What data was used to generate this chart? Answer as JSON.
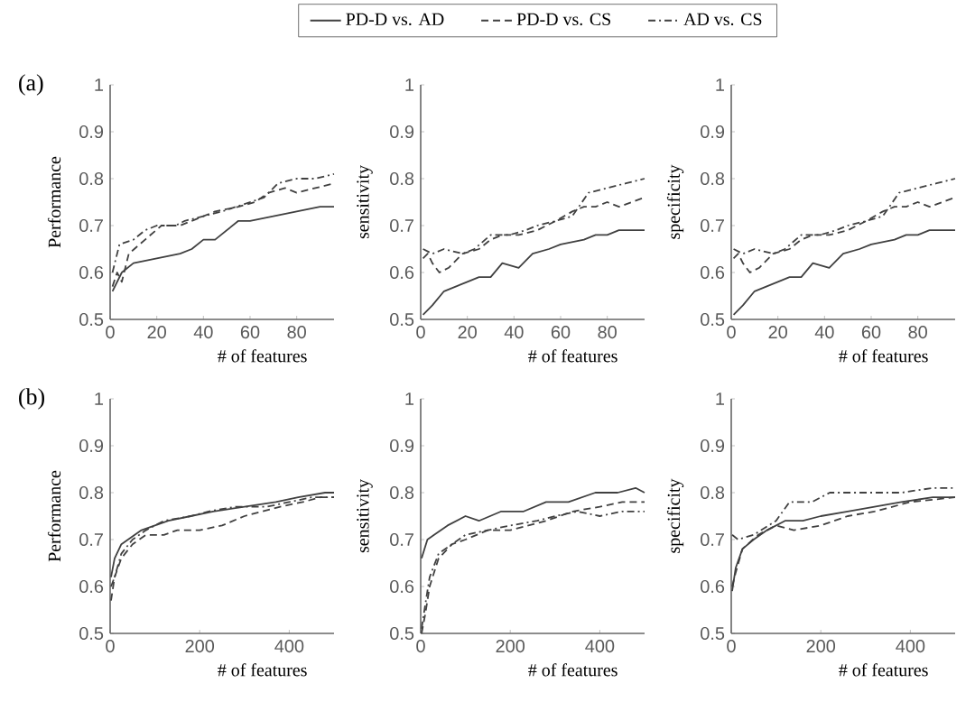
{
  "chart_data": [
    {
      "type": "line",
      "ylabel": "Performance",
      "xlabel": "# of features",
      "xlim": [
        0,
        96
      ],
      "ylim": [
        0.5,
        1
      ],
      "xticks": [
        0,
        20,
        40,
        60,
        80
      ],
      "yticks": [
        0.5,
        0.6,
        0.7,
        0.8,
        0.9,
        1
      ],
      "legend": "top",
      "annotations": [
        "(a)"
      ],
      "series": [
        {
          "name": "PD-D vs. AD",
          "color": "#404040",
          "line_style": "solid",
          "x": [
            1,
            5,
            10,
            20,
            30,
            35,
            40,
            45,
            50,
            55,
            60,
            70,
            80,
            90,
            96
          ],
          "values": [
            0.56,
            0.6,
            0.62,
            0.63,
            0.64,
            0.65,
            0.67,
            0.67,
            0.69,
            0.71,
            0.71,
            0.72,
            0.73,
            0.74,
            0.74
          ]
        },
        {
          "name": "PD-D vs. CS",
          "color": "#404040",
          "line_style": "dashed",
          "x": [
            1,
            3,
            5,
            8,
            15,
            22,
            30,
            35,
            40,
            45,
            55,
            62,
            68,
            75,
            80,
            88,
            96
          ],
          "values": [
            0.57,
            0.6,
            0.58,
            0.64,
            0.67,
            0.7,
            0.7,
            0.71,
            0.72,
            0.73,
            0.74,
            0.75,
            0.77,
            0.78,
            0.77,
            0.78,
            0.79
          ]
        },
        {
          "name": "AD vs. CS",
          "color": "#404040",
          "line_style": "dashdot",
          "x": [
            1,
            4,
            10,
            15,
            20,
            28,
            32,
            40,
            48,
            60,
            66,
            72,
            80,
            88,
            96
          ],
          "values": [
            0.6,
            0.66,
            0.67,
            0.69,
            0.7,
            0.7,
            0.71,
            0.72,
            0.73,
            0.75,
            0.76,
            0.79,
            0.8,
            0.8,
            0.81
          ]
        }
      ]
    },
    {
      "type": "line",
      "ylabel": "sensitivity",
      "xlabel": "# of features",
      "xlim": [
        0,
        96
      ],
      "ylim": [
        0.5,
        1
      ],
      "xticks": [
        0,
        20,
        40,
        60,
        80
      ],
      "yticks": [
        0.5,
        0.6,
        0.7,
        0.8,
        0.9,
        1
      ],
      "series": [
        {
          "color": "#404040",
          "line_style": "solid",
          "x": [
            1,
            5,
            10,
            15,
            20,
            25,
            30,
            35,
            42,
            48,
            55,
            60,
            70,
            75,
            80,
            85,
            90,
            96
          ],
          "values": [
            0.51,
            0.53,
            0.56,
            0.57,
            0.58,
            0.59,
            0.59,
            0.62,
            0.61,
            0.64,
            0.65,
            0.66,
            0.67,
            0.68,
            0.68,
            0.69,
            0.69,
            0.69
          ]
        },
        {
          "color": "#404040",
          "line_style": "dashed",
          "x": [
            1,
            3,
            5,
            8,
            12,
            18,
            25,
            30,
            35,
            42,
            50,
            58,
            65,
            70,
            75,
            80,
            85,
            96
          ],
          "values": [
            0.63,
            0.64,
            0.62,
            0.6,
            0.61,
            0.64,
            0.65,
            0.67,
            0.68,
            0.68,
            0.69,
            0.71,
            0.73,
            0.74,
            0.74,
            0.75,
            0.74,
            0.76
          ]
        },
        {
          "color": "#404040",
          "line_style": "dashdot",
          "x": [
            1,
            5,
            10,
            18,
            23,
            30,
            38,
            45,
            50,
            58,
            65,
            72,
            80,
            88,
            96
          ],
          "values": [
            0.65,
            0.64,
            0.65,
            0.64,
            0.65,
            0.68,
            0.68,
            0.69,
            0.7,
            0.71,
            0.72,
            0.77,
            0.78,
            0.79,
            0.8
          ]
        }
      ]
    },
    {
      "type": "line",
      "ylabel": "specificity",
      "xlabel": "# of features",
      "xlim": [
        0,
        96
      ],
      "ylim": [
        0.5,
        1
      ],
      "xticks": [
        0,
        20,
        40,
        60,
        80
      ],
      "yticks": [
        0.5,
        0.6,
        0.7,
        0.8,
        0.9,
        1
      ],
      "series": [
        {
          "color": "#404040",
          "line_style": "solid",
          "x": [
            1,
            5,
            10,
            15,
            20,
            25,
            30,
            35,
            42,
            48,
            55,
            60,
            70,
            75,
            80,
            85,
            90,
            96
          ],
          "values": [
            0.51,
            0.53,
            0.56,
            0.57,
            0.58,
            0.59,
            0.59,
            0.62,
            0.61,
            0.64,
            0.65,
            0.66,
            0.67,
            0.68,
            0.68,
            0.69,
            0.69,
            0.69
          ]
        },
        {
          "color": "#404040",
          "line_style": "dashed",
          "x": [
            1,
            3,
            5,
            8,
            12,
            18,
            25,
            30,
            35,
            42,
            50,
            58,
            65,
            70,
            75,
            80,
            85,
            96
          ],
          "values": [
            0.63,
            0.64,
            0.62,
            0.6,
            0.61,
            0.64,
            0.65,
            0.67,
            0.68,
            0.68,
            0.69,
            0.71,
            0.73,
            0.74,
            0.74,
            0.75,
            0.74,
            0.76
          ]
        },
        {
          "color": "#404040",
          "line_style": "dashdot",
          "x": [
            1,
            5,
            10,
            18,
            23,
            30,
            38,
            45,
            50,
            58,
            65,
            72,
            80,
            88,
            96
          ],
          "values": [
            0.65,
            0.64,
            0.65,
            0.64,
            0.65,
            0.68,
            0.68,
            0.69,
            0.7,
            0.71,
            0.72,
            0.77,
            0.78,
            0.79,
            0.8
          ]
        }
      ]
    },
    {
      "type": "line",
      "ylabel": "Performance",
      "xlabel": "# of features",
      "xlim": [
        0,
        500
      ],
      "ylim": [
        0.5,
        1
      ],
      "xticks": [
        0,
        200,
        400
      ],
      "yticks": [
        0.5,
        0.6,
        0.7,
        0.8,
        0.9,
        1
      ],
      "annotations": [
        "(b)"
      ],
      "series": [
        {
          "color": "#404040",
          "line_style": "solid",
          "x": [
            2,
            10,
            25,
            40,
            70,
            100,
            130,
            180,
            230,
            300,
            370,
            420,
            480,
            500
          ],
          "values": [
            0.62,
            0.66,
            0.69,
            0.7,
            0.72,
            0.73,
            0.74,
            0.75,
            0.76,
            0.77,
            0.78,
            0.79,
            0.8,
            0.8
          ]
        },
        {
          "color": "#404040",
          "line_style": "dashed",
          "x": [
            2,
            10,
            25,
            50,
            80,
            120,
            150,
            200,
            250,
            300,
            380,
            430,
            470,
            500
          ],
          "values": [
            0.57,
            0.62,
            0.66,
            0.69,
            0.71,
            0.71,
            0.72,
            0.72,
            0.73,
            0.75,
            0.77,
            0.78,
            0.79,
            0.79
          ]
        },
        {
          "color": "#404040",
          "line_style": "dashdot",
          "x": [
            2,
            10,
            25,
            50,
            80,
            120,
            180,
            220,
            280,
            350,
            400,
            450,
            500
          ],
          "values": [
            0.6,
            0.62,
            0.67,
            0.7,
            0.72,
            0.74,
            0.75,
            0.76,
            0.77,
            0.77,
            0.78,
            0.79,
            0.79
          ]
        }
      ]
    },
    {
      "type": "line",
      "ylabel": "sensitivity",
      "xlabel": "# of features",
      "xlim": [
        0,
        500
      ],
      "ylim": [
        0.5,
        1
      ],
      "xticks": [
        0,
        200,
        400
      ],
      "yticks": [
        0.5,
        0.6,
        0.7,
        0.8,
        0.9,
        1
      ],
      "series": [
        {
          "color": "#404040",
          "line_style": "solid",
          "x": [
            2,
            15,
            30,
            60,
            100,
            130,
            180,
            230,
            280,
            330,
            390,
            440,
            480,
            500
          ],
          "values": [
            0.66,
            0.7,
            0.71,
            0.73,
            0.75,
            0.74,
            0.76,
            0.76,
            0.78,
            0.78,
            0.8,
            0.8,
            0.81,
            0.8
          ]
        },
        {
          "color": "#404040",
          "line_style": "dashed",
          "x": [
            2,
            10,
            20,
            40,
            70,
            100,
            150,
            200,
            280,
            340,
            400,
            450,
            500
          ],
          "values": [
            0.5,
            0.54,
            0.6,
            0.66,
            0.69,
            0.7,
            0.72,
            0.72,
            0.74,
            0.76,
            0.77,
            0.78,
            0.78
          ]
        },
        {
          "color": "#404040",
          "line_style": "dashdot",
          "x": [
            2,
            10,
            20,
            40,
            70,
            100,
            150,
            200,
            260,
            300,
            350,
            400,
            450,
            500
          ],
          "values": [
            0.51,
            0.56,
            0.62,
            0.67,
            0.69,
            0.71,
            0.72,
            0.73,
            0.74,
            0.75,
            0.76,
            0.75,
            0.76,
            0.76
          ]
        }
      ]
    },
    {
      "type": "line",
      "ylabel": "specificity",
      "xlabel": "# of features",
      "xlim": [
        0,
        500
      ],
      "ylim": [
        0.5,
        1
      ],
      "xticks": [
        0,
        200,
        400
      ],
      "yticks": [
        0.5,
        0.6,
        0.7,
        0.8,
        0.9,
        1
      ],
      "series": [
        {
          "color": "#404040",
          "line_style": "solid",
          "x": [
            2,
            10,
            25,
            50,
            80,
            120,
            160,
            200,
            260,
            320,
            380,
            450,
            500
          ],
          "values": [
            0.59,
            0.64,
            0.68,
            0.7,
            0.72,
            0.74,
            0.74,
            0.75,
            0.76,
            0.77,
            0.78,
            0.79,
            0.79
          ]
        },
        {
          "color": "#404040",
          "line_style": "dashed",
          "x": [
            2,
            10,
            25,
            60,
            100,
            140,
            200,
            260,
            320,
            400,
            500
          ],
          "values": [
            0.6,
            0.63,
            0.68,
            0.71,
            0.73,
            0.72,
            0.73,
            0.75,
            0.76,
            0.78,
            0.79
          ]
        },
        {
          "color": "#404040",
          "line_style": "dashdot",
          "x": [
            2,
            15,
            50,
            100,
            130,
            180,
            220,
            300,
            380,
            450,
            500
          ],
          "values": [
            0.71,
            0.7,
            0.71,
            0.74,
            0.78,
            0.78,
            0.8,
            0.8,
            0.8,
            0.81,
            0.81
          ]
        }
      ]
    }
  ]
}
